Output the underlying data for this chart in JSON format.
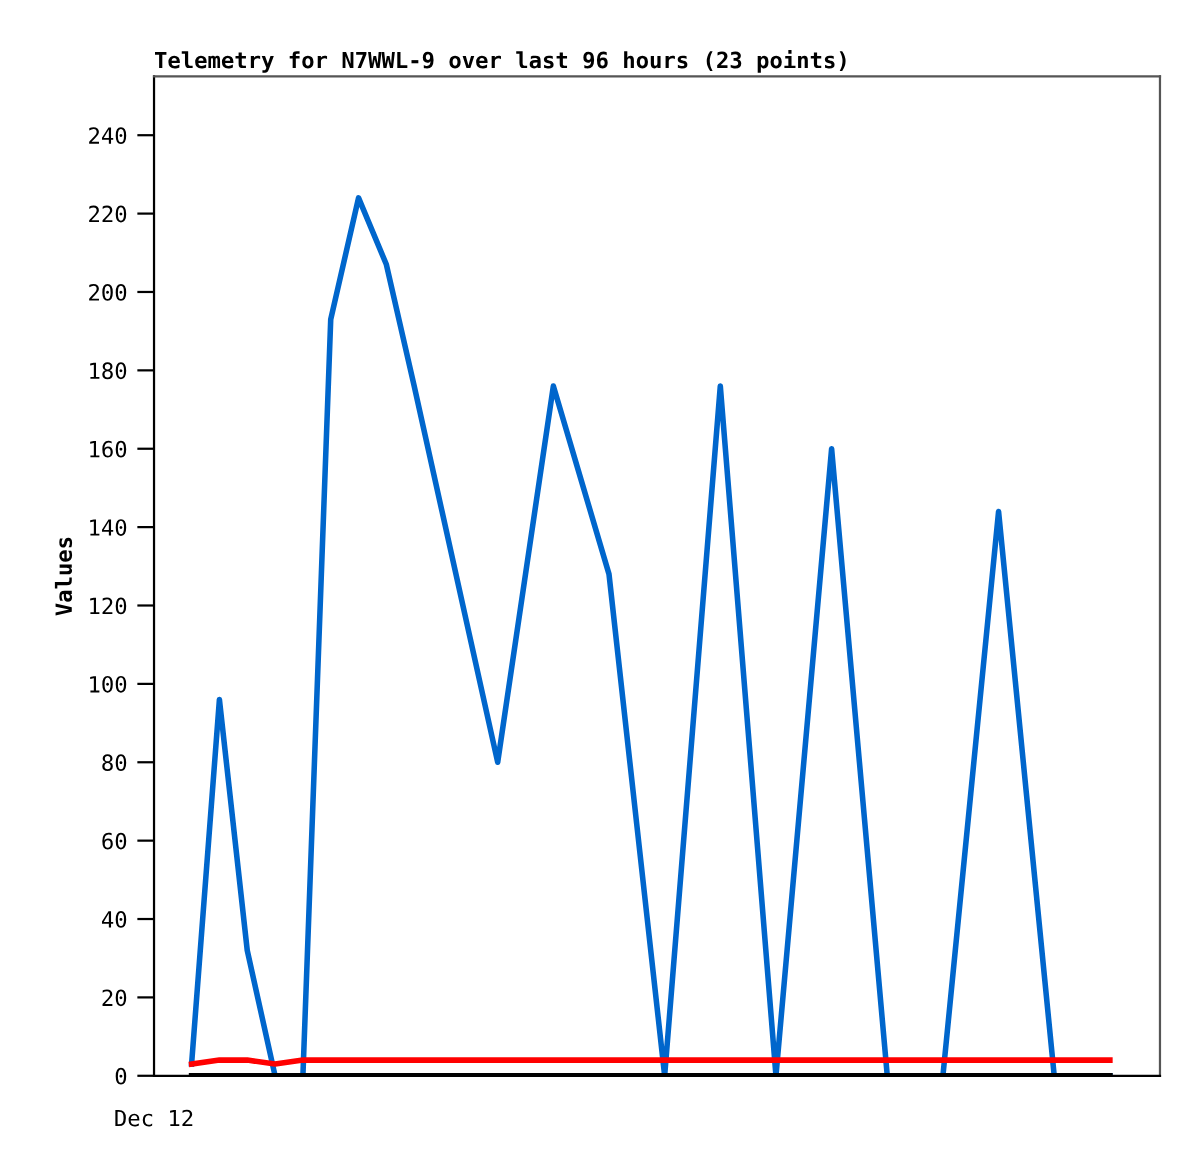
{
  "chart_data": {
    "type": "line",
    "title": "Telemetry for N7WWL-9 over last 96 hours (23 points)",
    "ylabel": "Values",
    "categories": [
      null,
      null,
      null,
      null,
      null,
      null,
      null,
      null,
      null,
      null,
      null,
      null,
      null,
      null,
      null,
      null,
      null,
      null,
      null,
      null,
      null,
      null,
      null,
      null,
      null,
      null,
      null,
      null,
      null,
      null,
      null,
      null,
      null,
      null
    ],
    "annotations": [
      "Dec 12"
    ],
    "ylim": [
      0,
      255
    ],
    "yticks": [
      0,
      20,
      40,
      60,
      80,
      100,
      120,
      140,
      160,
      180,
      200,
      220,
      240
    ],
    "grid": false,
    "legend": false,
    "marker": "none",
    "line_style": "solid",
    "series": [
      {
        "color": "#0066cc",
        "values": [
          3,
          96,
          32,
          0,
          0,
          193,
          224,
          207,
          176,
          144,
          112,
          80,
          128,
          176,
          152,
          128,
          64,
          0,
          88,
          176,
          88,
          0,
          80,
          160,
          80,
          0,
          0,
          0,
          72,
          144,
          72,
          0,
          0,
          0
        ]
      },
      {
        "color": "#ff0000",
        "values": [
          3,
          4,
          4,
          3,
          4,
          4,
          4,
          4,
          4,
          4,
          4,
          4,
          4,
          4,
          4,
          4,
          4,
          4,
          4,
          4,
          4,
          4,
          4,
          4,
          4,
          4,
          4,
          4,
          4,
          4,
          4,
          4,
          4,
          4
        ]
      },
      {
        "color": "#000000",
        "values": [
          0,
          0,
          0,
          0,
          0,
          0,
          0,
          0,
          0,
          0,
          0,
          0,
          0,
          0,
          0,
          0,
          0,
          0,
          0,
          0,
          0,
          0,
          0,
          0,
          0,
          0,
          0,
          0,
          0,
          0,
          0,
          0,
          0,
          0
        ]
      }
    ]
  }
}
